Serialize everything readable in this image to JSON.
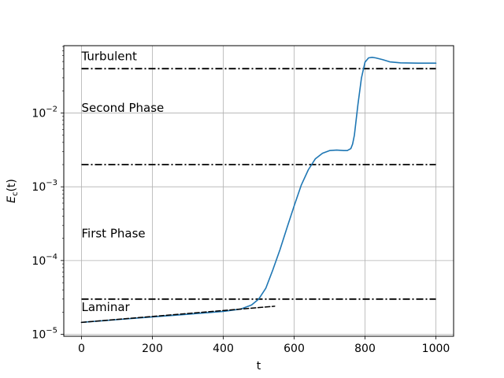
{
  "chart_data": {
    "type": "line",
    "title": "",
    "xlabel": "t",
    "ylabel_main": "E",
    "ylabel_sub": "c",
    "ylabel_tail": "(t)",
    "xlim": [
      -50,
      1050
    ],
    "ylim": [
      9.4e-06,
      0.082
    ],
    "yscale": "log",
    "grid": true,
    "x_ticks": [
      {
        "value": 0,
        "label": "0"
      },
      {
        "value": 200,
        "label": "200"
      },
      {
        "value": 400,
        "label": "400"
      },
      {
        "value": 600,
        "label": "600"
      },
      {
        "value": 800,
        "label": "800"
      },
      {
        "value": 1000,
        "label": "1000"
      }
    ],
    "y_ticks": [
      {
        "value": 1e-05,
        "base": "10",
        "exp": "−5"
      },
      {
        "value": 0.0001,
        "base": "10",
        "exp": "−4"
      },
      {
        "value": 0.001,
        "base": "10",
        "exp": "−3"
      },
      {
        "value": 0.01,
        "base": "10",
        "exp": "−2"
      }
    ],
    "series": [
      {
        "color": "#1f77b4",
        "style": "solid",
        "x": [
          0,
          100,
          200,
          300,
          400,
          450,
          480,
          500,
          520,
          540,
          560,
          580,
          600,
          620,
          640,
          660,
          680,
          700,
          720,
          740,
          750,
          760,
          765,
          770,
          780,
          790,
          800,
          810,
          820,
          830,
          850,
          870,
          900,
          950,
          1000
        ],
        "y": [
          1.45e-05,
          1.58e-05,
          1.72e-05,
          1.87e-05,
          2.04e-05,
          2.2e-05,
          2.5e-05,
          3e-05,
          4.2e-05,
          7.5e-05,
          0.00014,
          0.00028,
          0.00055,
          0.00105,
          0.0017,
          0.0024,
          0.00285,
          0.0031,
          0.00315,
          0.0031,
          0.0031,
          0.0033,
          0.0038,
          0.005,
          0.013,
          0.03,
          0.049,
          0.056,
          0.057,
          0.056,
          0.053,
          0.0495,
          0.048,
          0.0475,
          0.0475
        ]
      },
      {
        "color": "#000000",
        "style": "dashed",
        "x": [
          0,
          545
        ],
        "y": [
          1.45e-05,
          2.4e-05
        ]
      }
    ],
    "thresholds": [
      {
        "y": 3e-05,
        "x_start": 0,
        "x_end": 1000
      },
      {
        "y": 0.002,
        "x_start": 0,
        "x_end": 1000
      },
      {
        "y": 0.04,
        "x_start": 0,
        "x_end": 1000
      }
    ],
    "annotations": [
      {
        "text": "Turbulent",
        "x": 0,
        "y": 0.052
      },
      {
        "text": "Second Phase",
        "x": 0,
        "y": 0.0104
      },
      {
        "text": "First Phase",
        "x": 0,
        "y": 0.000205
      },
      {
        "text": "Laminar",
        "x": 0,
        "y": 2.07e-05
      }
    ]
  }
}
